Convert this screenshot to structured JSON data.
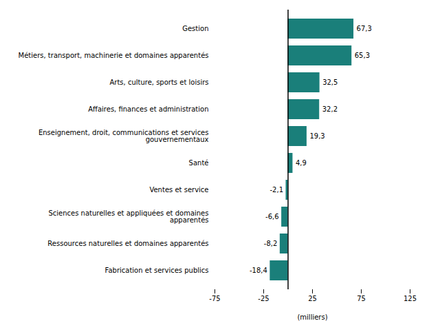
{
  "chart_data": {
    "type": "bar",
    "orientation": "horizontal",
    "categories": [
      "Fabrication et services publics",
      "Ressources naturelles et domaines apparentés",
      "Sciences naturelles et appliquées et domaines\napparentés",
      "Ventes et service",
      "Santé",
      "Enseignement, droit, communications et services\ngouvernementaux",
      "Affaires, finances et administration",
      "Arts, culture, sports et loisirs",
      "Métiers, transport, machinerie et domaines apparentés",
      "Gestion"
    ],
    "values": [
      -18.4,
      -8.2,
      -6.6,
      -2.1,
      4.9,
      19.3,
      32.2,
      32.5,
      65.3,
      67.3
    ],
    "value_labels": [
      "-18,4",
      "-8,2",
      "-6,6",
      "-2,1",
      "4,9",
      "19,3",
      "32,2",
      "32,5",
      "65,3",
      "67,3"
    ],
    "data_labels": true,
    "color": "#1a7f7a",
    "xlabel": "(milliers)",
    "xlim": [
      -75,
      125
    ],
    "xticks": [
      -75,
      -25,
      25,
      75,
      125
    ],
    "grid": false
  }
}
